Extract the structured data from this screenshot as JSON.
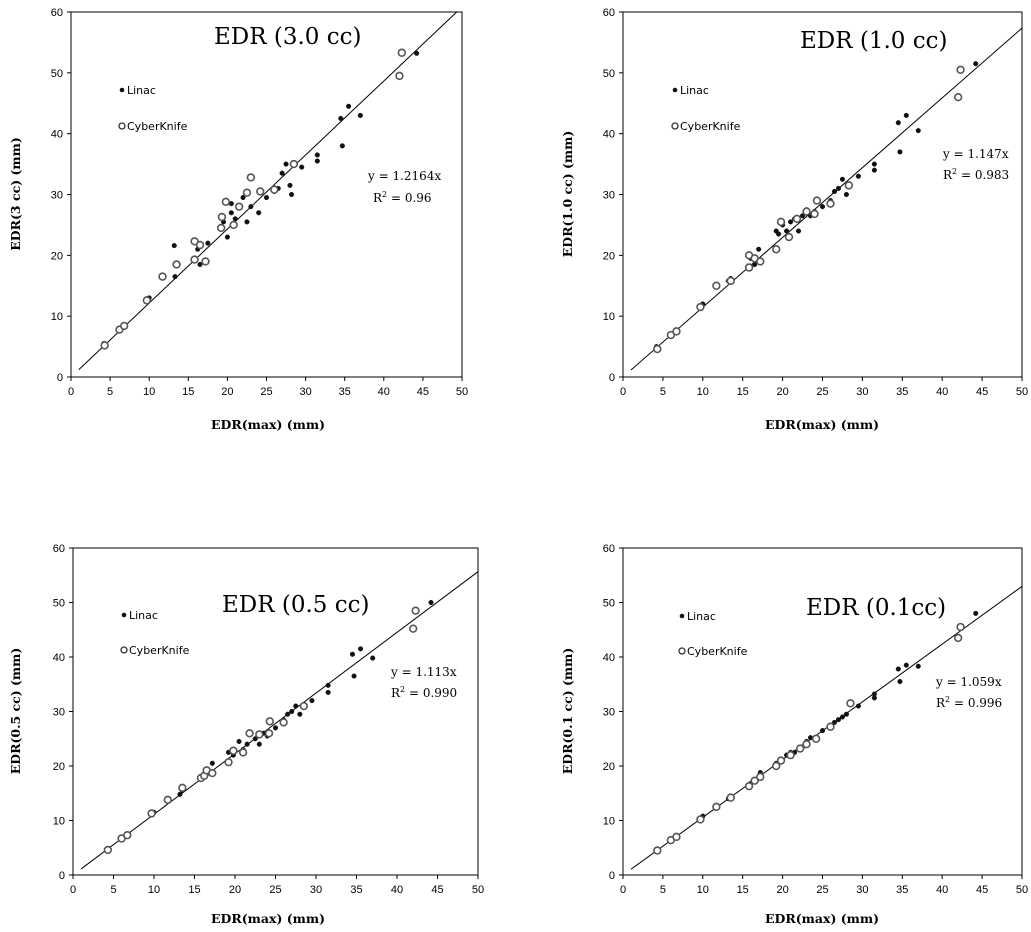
{
  "chart_data": [
    {
      "type": "scatter",
      "title": "EDR (3.0 cc)",
      "xlabel": "EDR(max)  (mm)",
      "ylabel": "EDR(3 cc)  (mm)",
      "xlim": [
        0,
        50
      ],
      "ylim": [
        0,
        60
      ],
      "xticks": [
        "0",
        "5",
        "10",
        "15",
        "20",
        "25",
        "30",
        "35",
        "40",
        "45",
        "50"
      ],
      "yticks": [
        "0",
        "10",
        "20",
        "30",
        "40",
        "50",
        "60"
      ],
      "legend": [
        "Linac",
        "CyberKnife"
      ],
      "fit": {
        "slope": 1.2164,
        "equation": "y = 1.2164x",
        "r2_label": "R",
        "r2_exp": "2",
        "r2_value": " = 0.96"
      },
      "series": [
        {
          "name": "Linac",
          "marker": "filled",
          "points": [
            [
              4.2,
              5.5
            ],
            [
              10,
              13
            ],
            [
              13.2,
              21.6
            ],
            [
              13.3,
              16.5
            ],
            [
              16.2,
              21
            ],
            [
              16.5,
              18.5
            ],
            [
              17.5,
              22
            ],
            [
              19.5,
              25.5
            ],
            [
              20,
              23
            ],
            [
              20.5,
              27
            ],
            [
              20.5,
              28.5
            ],
            [
              21,
              26
            ],
            [
              22,
              29.5
            ],
            [
              22.5,
              25.5
            ],
            [
              23,
              28
            ],
            [
              24,
              27
            ],
            [
              25,
              29.5
            ],
            [
              26,
              30.5
            ],
            [
              26.5,
              31
            ],
            [
              27,
              33.5
            ],
            [
              27.5,
              35
            ],
            [
              28,
              31.5
            ],
            [
              28.2,
              30
            ],
            [
              29.5,
              34.5
            ],
            [
              31.5,
              35.5
            ],
            [
              31.5,
              36.5
            ],
            [
              34.5,
              42.5
            ],
            [
              34.7,
              38
            ],
            [
              35.5,
              44.5
            ],
            [
              37,
              43
            ],
            [
              44.2,
              53.2
            ]
          ]
        },
        {
          "name": "CyberKnife",
          "marker": "open",
          "points": [
            [
              4.3,
              5.2
            ],
            [
              6.2,
              7.8
            ],
            [
              6.8,
              8.4
            ],
            [
              9.7,
              12.6
            ],
            [
              11.7,
              16.5
            ],
            [
              13.5,
              18.5
            ],
            [
              15.8,
              22.3
            ],
            [
              15.8,
              19.3
            ],
            [
              16.5,
              21.7
            ],
            [
              17.2,
              19
            ],
            [
              19.2,
              24.5
            ],
            [
              19.3,
              26.3
            ],
            [
              19.8,
              28.8
            ],
            [
              20.8,
              25
            ],
            [
              21.5,
              28
            ],
            [
              22.5,
              30.3
            ],
            [
              23,
              32.8
            ],
            [
              24.2,
              30.5
            ],
            [
              26,
              30.8
            ],
            [
              28.5,
              35
            ],
            [
              42,
              49.5
            ],
            [
              42.3,
              53.3
            ]
          ]
        }
      ]
    },
    {
      "type": "scatter",
      "title": "EDR (1.0 cc)",
      "xlabel": "EDR(max)  (mm)",
      "ylabel": "EDR(1.0 cc)  (mm)",
      "xlim": [
        0,
        50
      ],
      "ylim": [
        0,
        60
      ],
      "xticks": [
        "0",
        "5",
        "10",
        "15",
        "20",
        "25",
        "30",
        "35",
        "40",
        "45",
        "50"
      ],
      "yticks": [
        "0",
        "10",
        "20",
        "30",
        "40",
        "50",
        "60"
      ],
      "legend": [
        "Linac",
        "CyberKnife"
      ],
      "fit": {
        "slope": 1.147,
        "equation": "y = 1.147x",
        "r2_label": "R",
        "r2_exp": "2",
        "r2_value": " = 0.983"
      },
      "series": [
        {
          "name": "Linac",
          "marker": "filled",
          "points": [
            [
              4.2,
              5
            ],
            [
              10,
              12
            ],
            [
              13.2,
              15.8
            ],
            [
              13.5,
              16.2
            ],
            [
              16,
              19.5
            ],
            [
              16.5,
              18.5
            ],
            [
              17,
              21
            ],
            [
              19.2,
              24
            ],
            [
              19.5,
              23.5
            ],
            [
              20,
              25
            ],
            [
              20.5,
              24
            ],
            [
              21,
              25.5
            ],
            [
              21.5,
              26
            ],
            [
              22,
              24
            ],
            [
              22.5,
              26.5
            ],
            [
              23,
              27.5
            ],
            [
              23.5,
              26.5
            ],
            [
              24,
              27.2
            ],
            [
              25,
              28
            ],
            [
              26,
              29
            ],
            [
              26.5,
              30.5
            ],
            [
              27,
              31
            ],
            [
              27.5,
              32.5
            ],
            [
              28,
              30
            ],
            [
              29.5,
              33
            ],
            [
              31.5,
              34
            ],
            [
              31.5,
              35
            ],
            [
              34.5,
              41.8
            ],
            [
              34.7,
              37
            ],
            [
              35.5,
              43
            ],
            [
              37,
              40.5
            ],
            [
              44.2,
              51.5
            ]
          ]
        },
        {
          "name": "CyberKnife",
          "marker": "open",
          "points": [
            [
              4.3,
              4.6
            ],
            [
              6,
              6.9
            ],
            [
              6.7,
              7.5
            ],
            [
              9.7,
              11.5
            ],
            [
              11.7,
              15
            ],
            [
              13.5,
              15.8
            ],
            [
              15.8,
              18
            ],
            [
              15.8,
              20
            ],
            [
              16.5,
              19.5
            ],
            [
              17.2,
              19
            ],
            [
              19.2,
              21
            ],
            [
              19.8,
              25.5
            ],
            [
              20.8,
              23
            ],
            [
              21.8,
              26
            ],
            [
              23,
              27.2
            ],
            [
              24,
              26.8
            ],
            [
              24.3,
              29
            ],
            [
              26,
              28.5
            ],
            [
              28.3,
              31.5
            ],
            [
              42,
              46
            ],
            [
              42.3,
              50.5
            ]
          ]
        }
      ]
    },
    {
      "type": "scatter",
      "title": "EDR (0.5 cc)",
      "xlabel": "EDR(max)  (mm)",
      "ylabel": "EDR(0.5 cc)  (mm)",
      "xlim": [
        0,
        50
      ],
      "ylim": [
        0,
        60
      ],
      "xticks": [
        "0",
        "5",
        "10",
        "15",
        "20",
        "25",
        "30",
        "35",
        "40",
        "45",
        "50"
      ],
      "yticks": [
        "0",
        "10",
        "20",
        "30",
        "40",
        "50",
        "60"
      ],
      "legend": [
        "Linac",
        "CyberKnife"
      ],
      "fit": {
        "slope": 1.113,
        "equation": "y = 1.113x",
        "r2_label": "R",
        "r2_exp": "2",
        "r2_value": " = 0.990"
      },
      "series": [
        {
          "name": "Linac",
          "marker": "filled",
          "points": [
            [
              4.2,
              4.8
            ],
            [
              10,
              11.5
            ],
            [
              13.2,
              14.8
            ],
            [
              13.5,
              15.5
            ],
            [
              16,
              18
            ],
            [
              16.5,
              18.5
            ],
            [
              17.2,
              20.5
            ],
            [
              19.2,
              22.5
            ],
            [
              19.8,
              22
            ],
            [
              20.5,
              24.5
            ],
            [
              21,
              23
            ],
            [
              21.5,
              24
            ],
            [
              22.5,
              25
            ],
            [
              23,
              24
            ],
            [
              23.5,
              26
            ],
            [
              24,
              25.5
            ],
            [
              25,
              27
            ],
            [
              26,
              28.5
            ],
            [
              26.5,
              29.5
            ],
            [
              27,
              30
            ],
            [
              27.5,
              31
            ],
            [
              28,
              29.5
            ],
            [
              29.5,
              32
            ],
            [
              31.5,
              33.5
            ],
            [
              31.5,
              34.8
            ],
            [
              34.5,
              40.5
            ],
            [
              34.7,
              36.5
            ],
            [
              35.5,
              41.5
            ],
            [
              37,
              39.8
            ],
            [
              44.2,
              50
            ]
          ]
        },
        {
          "name": "CyberKnife",
          "marker": "open",
          "points": [
            [
              4.3,
              4.6
            ],
            [
              6,
              6.7
            ],
            [
              6.7,
              7.3
            ],
            [
              9.7,
              11.3
            ],
            [
              11.7,
              13.8
            ],
            [
              13.5,
              16
            ],
            [
              15.8,
              17.8
            ],
            [
              16.2,
              18.2
            ],
            [
              16.5,
              19.2
            ],
            [
              17.2,
              18.7
            ],
            [
              19.2,
              20.7
            ],
            [
              19.8,
              22.8
            ],
            [
              21,
              22.5
            ],
            [
              21.8,
              26
            ],
            [
              23,
              25.8
            ],
            [
              24.2,
              26
            ],
            [
              24.3,
              28.2
            ],
            [
              26,
              28
            ],
            [
              28.5,
              31
            ],
            [
              42,
              45.2
            ],
            [
              42.3,
              48.5
            ]
          ]
        }
      ]
    },
    {
      "type": "scatter",
      "title": "EDR (0.1cc)",
      "xlabel": "EDR(max)  (mm)",
      "ylabel": "EDR(0.1 cc)  (mm)",
      "xlim": [
        0,
        50
      ],
      "ylim": [
        0,
        60
      ],
      "xticks": [
        "0",
        "5",
        "10",
        "15",
        "20",
        "25",
        "30",
        "35",
        "40",
        "45",
        "50"
      ],
      "yticks": [
        "0",
        "10",
        "20",
        "30",
        "40",
        "50",
        "60"
      ],
      "legend": [
        "Linac",
        "CyberKnife"
      ],
      "fit": {
        "slope": 1.059,
        "equation": "y = 1.059x",
        "r2_label": "R",
        "r2_exp": "2",
        "r2_value": " = 0.996"
      },
      "series": [
        {
          "name": "Linac",
          "marker": "filled",
          "points": [
            [
              4.2,
              4.5
            ],
            [
              10,
              10.8
            ],
            [
              13.2,
              14
            ],
            [
              13.5,
              14.3
            ],
            [
              16,
              16.8
            ],
            [
              16.5,
              17.5
            ],
            [
              17.2,
              18.8
            ],
            [
              19.2,
              20.5
            ],
            [
              19.8,
              21
            ],
            [
              20.5,
              22
            ],
            [
              21,
              22.5
            ],
            [
              21.5,
              22.5
            ],
            [
              22.5,
              23.5
            ],
            [
              23,
              24.5
            ],
            [
              23.5,
              25.2
            ],
            [
              24,
              25
            ],
            [
              25,
              26.5
            ],
            [
              26,
              27.5
            ],
            [
              26.5,
              28
            ],
            [
              27,
              28.5
            ],
            [
              27.5,
              29
            ],
            [
              28,
              29.5
            ],
            [
              29.5,
              31
            ],
            [
              31.5,
              32.5
            ],
            [
              31.5,
              33.2
            ],
            [
              34.5,
              37.8
            ],
            [
              34.7,
              35.5
            ],
            [
              35.5,
              38.5
            ],
            [
              37,
              38.3
            ],
            [
              44.2,
              48
            ]
          ]
        },
        {
          "name": "CyberKnife",
          "marker": "open",
          "points": [
            [
              4.3,
              4.5
            ],
            [
              6,
              6.4
            ],
            [
              6.7,
              7
            ],
            [
              9.7,
              10.2
            ],
            [
              11.7,
              12.5
            ],
            [
              13.5,
              14.2
            ],
            [
              15.8,
              16.3
            ],
            [
              16.5,
              17.3
            ],
            [
              17.2,
              18
            ],
            [
              19.2,
              20
            ],
            [
              19.8,
              21
            ],
            [
              21,
              22
            ],
            [
              22.2,
              23.2
            ],
            [
              23,
              24
            ],
            [
              24.2,
              25
            ],
            [
              26,
              27.2
            ],
            [
              28.5,
              31.5
            ],
            [
              42,
              43.5
            ],
            [
              42.3,
              45.5
            ]
          ]
        }
      ]
    }
  ]
}
